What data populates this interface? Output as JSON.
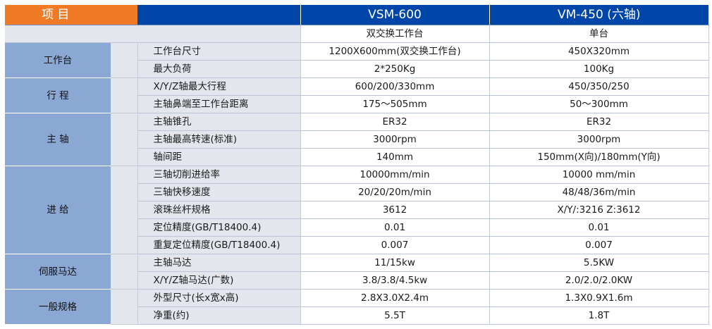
{
  "header": {
    "item_label": "项  目",
    "model_a": "VSM-600",
    "model_b": "VM-450 (六轴)"
  },
  "subheader": {
    "model_a_table": "双交换工作台",
    "model_b_table": "单台"
  },
  "groups": [
    {
      "category": "工作台",
      "rows": [
        {
          "feature": "工作台尺寸",
          "a": "1200X600mm(双交换工作台)",
          "b": "450X320mm"
        },
        {
          "feature": "最大负荷",
          "a": "2*250Kg",
          "b": "100Kg"
        }
      ]
    },
    {
      "category": "行 程",
      "rows": [
        {
          "feature": "X/Y/Z轴最大行程",
          "a": "600/200/330mm",
          "b": "450/350/250"
        },
        {
          "feature": "主轴鼻端至工作台距离",
          "a": "175～505mm",
          "b": "50～300mm"
        }
      ]
    },
    {
      "category": "主 轴",
      "rows": [
        {
          "feature": "主轴锥孔",
          "a": "ER32",
          "b": "ER32"
        },
        {
          "feature": "主轴最高转速(标准)",
          "a": "3000rpm",
          "b": "3000rpm"
        },
        {
          "feature": "轴间距",
          "a": "140mm",
          "b": "150mm(X向)/180mm(Y向)"
        }
      ]
    },
    {
      "category": "进 给",
      "rows": [
        {
          "feature": "三轴切削进给率",
          "a": "10000mm/min",
          "b": "10000 mm/min"
        },
        {
          "feature": "三轴快移速度",
          "a": "20/20/20m/min",
          "b": "48/48/36m/min"
        },
        {
          "feature": "滚珠丝杆规格",
          "a": "3612",
          "b": "X/Y/:3216  Z:3612"
        },
        {
          "feature": "定位精度(GB/T18400.4)",
          "a": "0.01",
          "b": "0.01"
        },
        {
          "feature": "重复定位精度(GB/T18400.4)",
          "a": "0.007",
          "b": "0.007"
        }
      ]
    },
    {
      "category": "伺服马达",
      "rows": [
        {
          "feature": "主轴马达",
          "a": "11/15kw",
          "b": "5.5KW"
        },
        {
          "feature": "X/Y/Z轴马达(广数)",
          "a": "3.8/3.8/4.5kw",
          "b": "2.0/2.0/2.0KW"
        }
      ]
    },
    {
      "category": "一般规格",
      "rows": [
        {
          "feature": "外型尺寸(长x宽x高)",
          "a": "2.8X3.0X2.4m",
          "b": "1.3X0.9X1.6m"
        },
        {
          "feature": "净重(约)",
          "a": "5.5T",
          "b": "1.8T"
        }
      ]
    }
  ]
}
